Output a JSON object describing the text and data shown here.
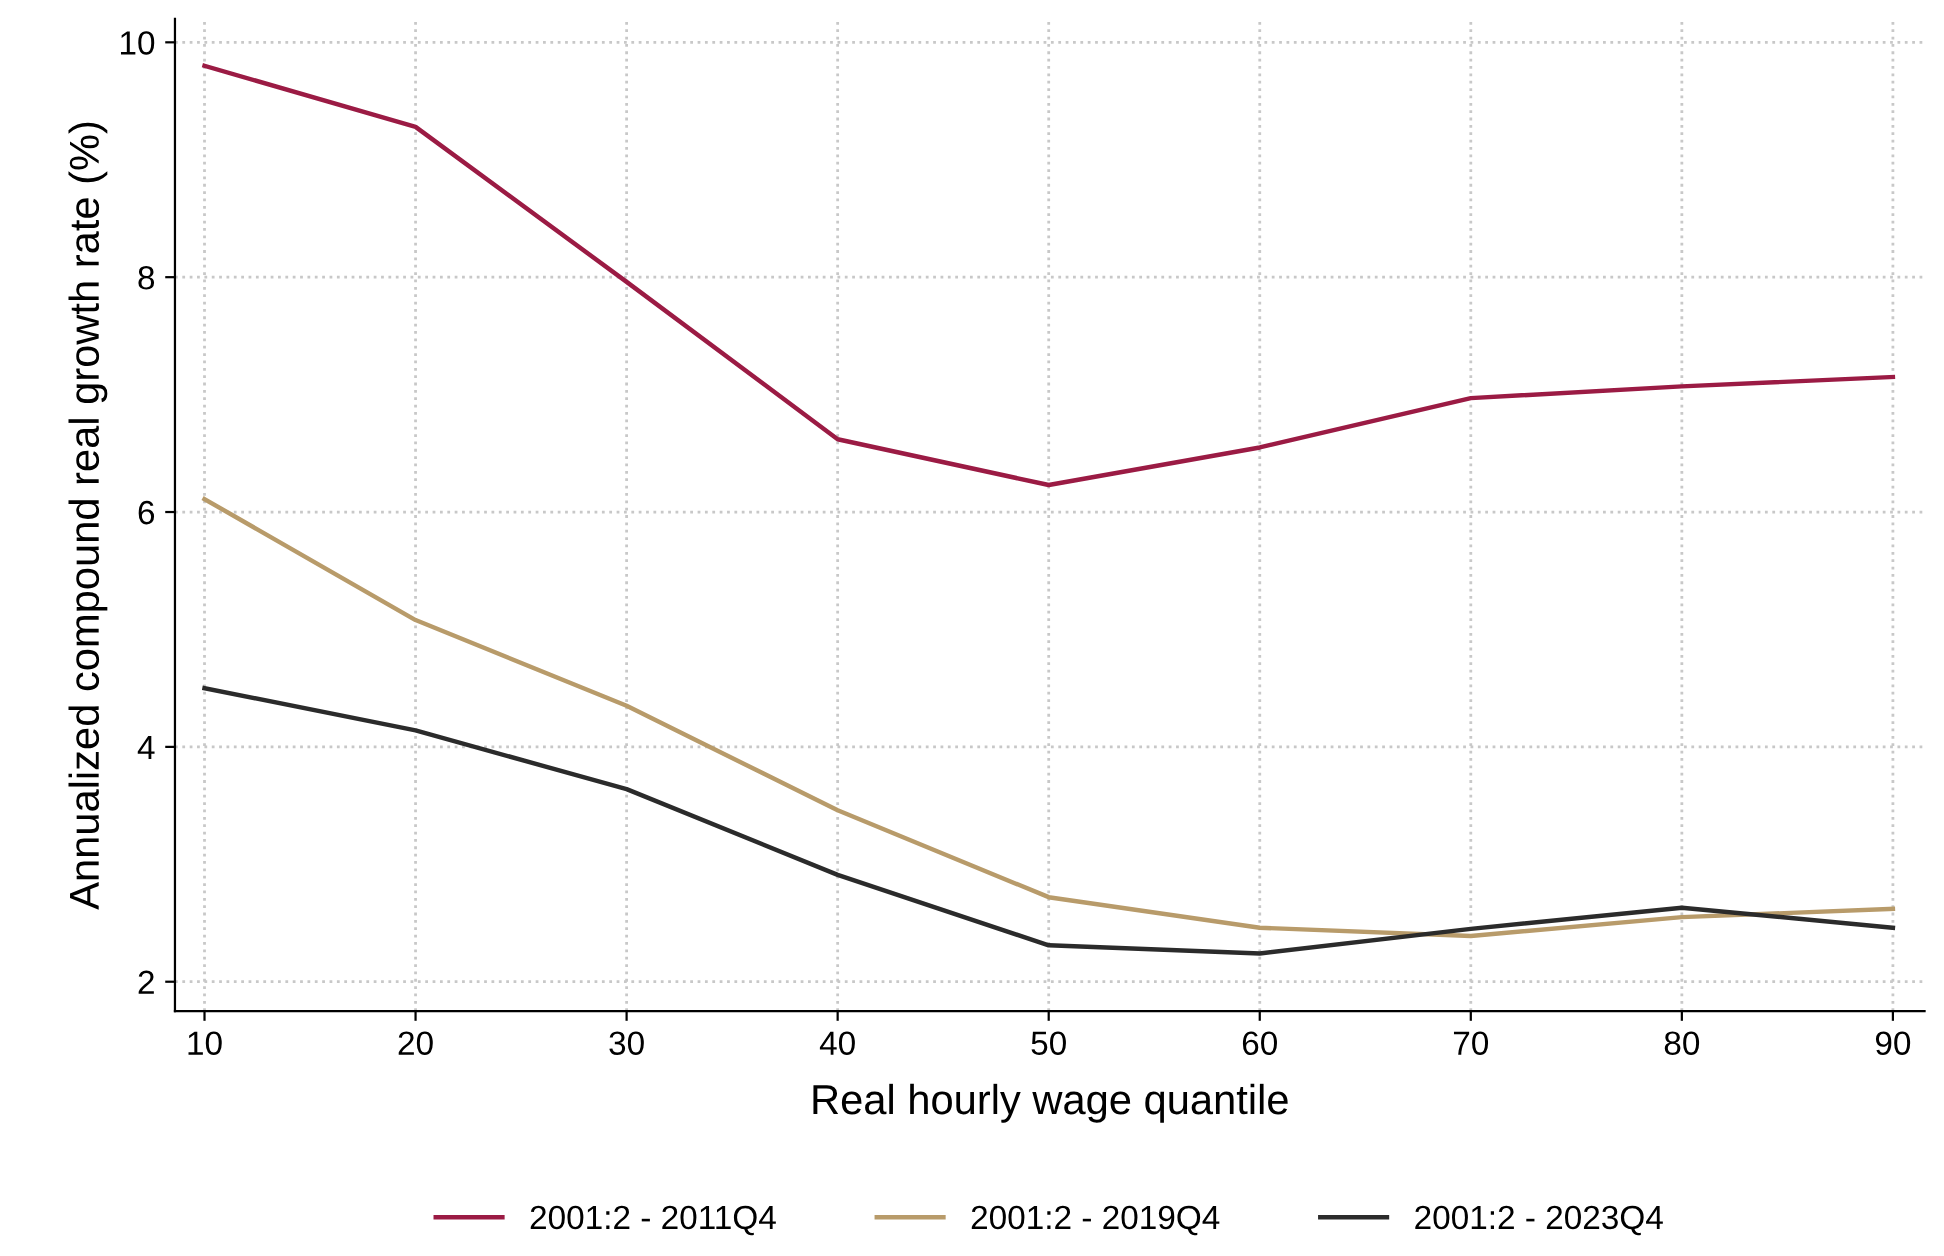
{
  "chart_data": {
    "type": "line",
    "xlabel": "Real hourly wage quantile",
    "ylabel": "Annualized compound real growth rate (%)",
    "x": [
      10,
      20,
      30,
      40,
      50,
      60,
      70,
      80,
      90
    ],
    "series": [
      {
        "name": "2001:2 - 2011Q4",
        "color": "#9b1b44",
        "values": [
          9.8,
          9.28,
          7.96,
          6.62,
          6.23,
          6.55,
          6.97,
          7.07,
          7.15
        ]
      },
      {
        "name": "2001:2 - 2019Q4",
        "color": "#b89b6a",
        "values": [
          6.11,
          5.08,
          4.35,
          3.46,
          2.72,
          2.46,
          2.39,
          2.55,
          2.62
        ]
      },
      {
        "name": "2001:2 - 2023Q4",
        "color": "#2b2b2b",
        "values": [
          4.5,
          4.14,
          3.64,
          2.91,
          2.31,
          2.24,
          2.45,
          2.63,
          2.46
        ]
      }
    ],
    "xlim": [
      8.6,
      91.5
    ],
    "ylim": [
      1.75,
      10.2
    ],
    "xticks": [
      10,
      20,
      30,
      40,
      50,
      60,
      70,
      80,
      90
    ],
    "yticks": [
      2,
      4,
      6,
      8,
      10
    ],
    "grid": true,
    "legend": "bottom",
    "line_style": "solid",
    "marker": "none"
  }
}
